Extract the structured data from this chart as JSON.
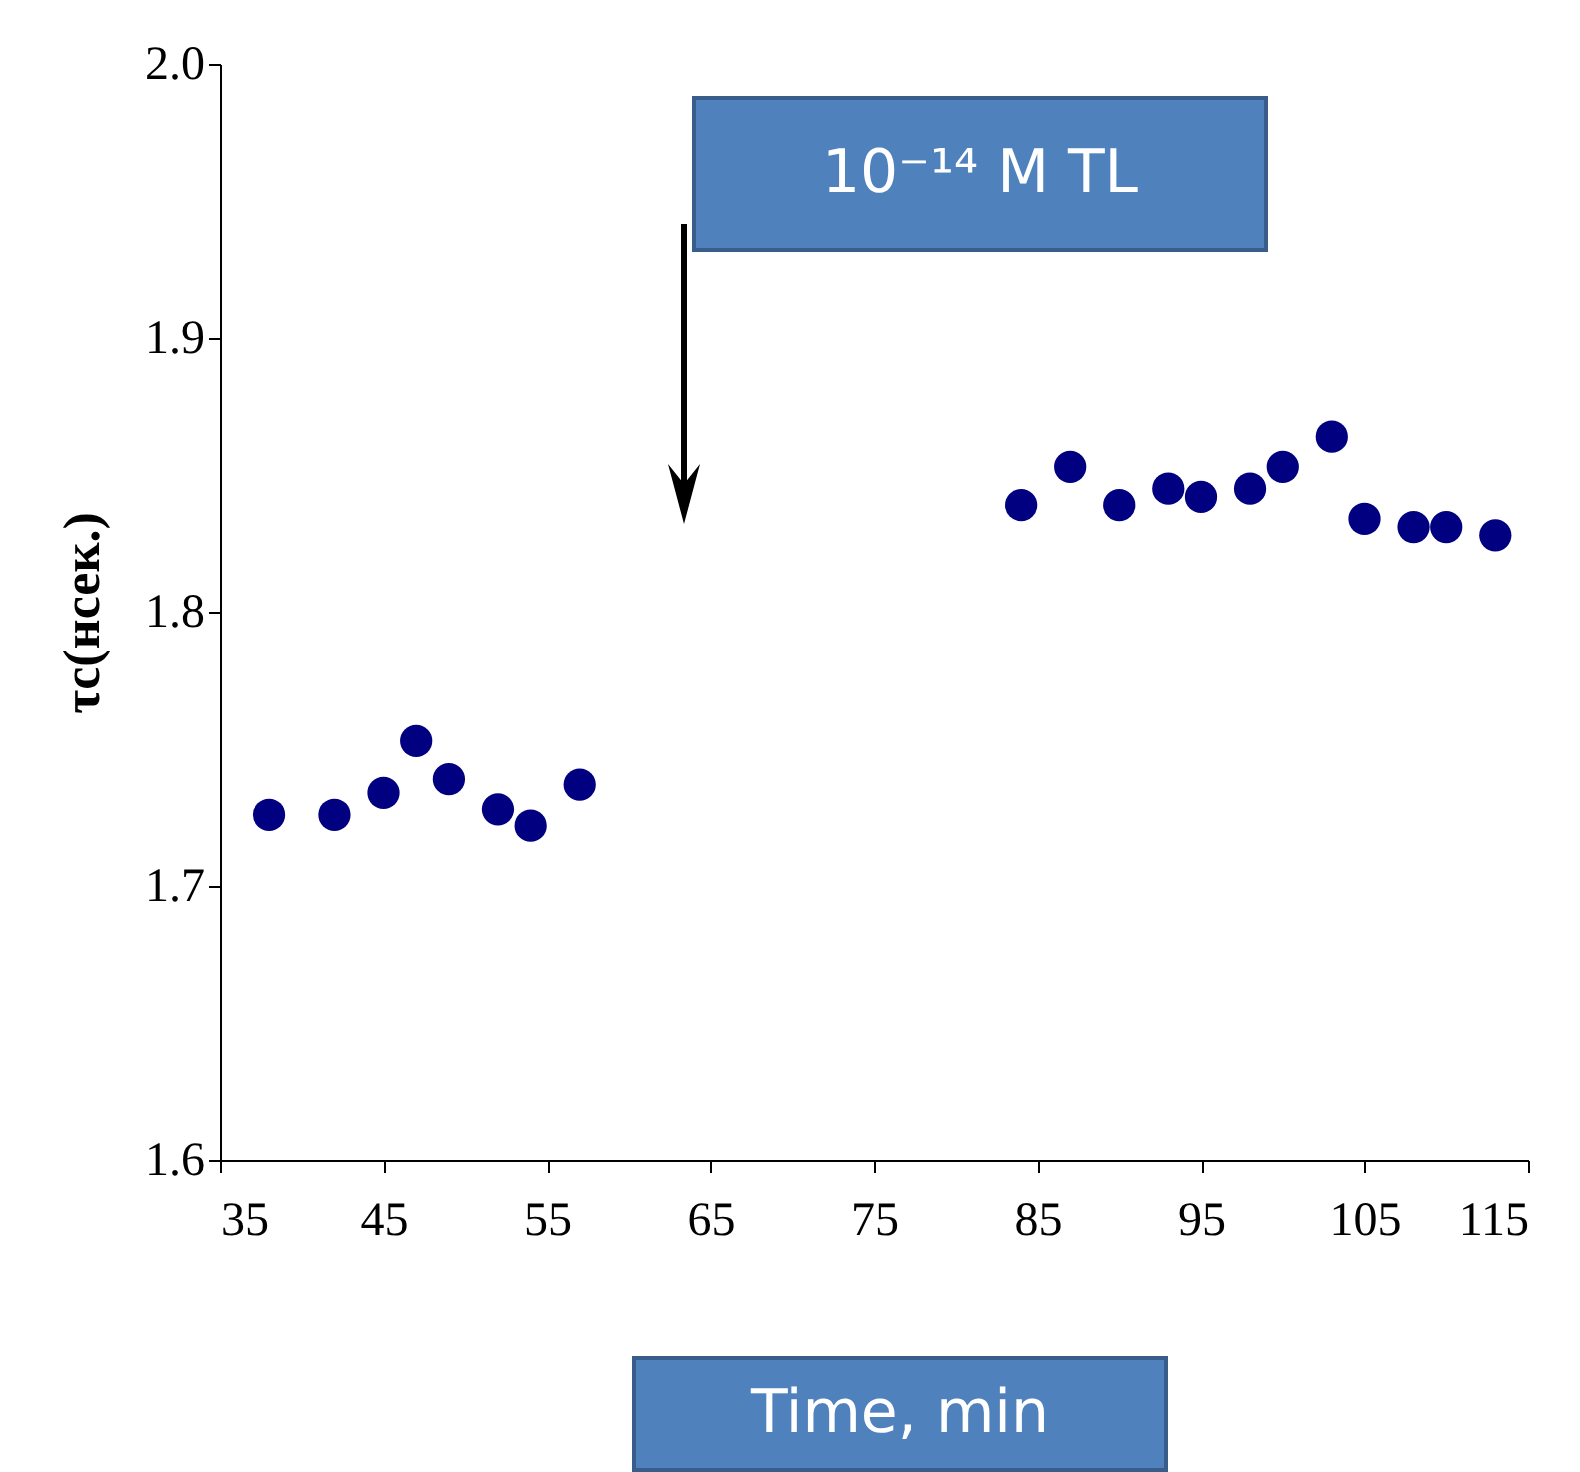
{
  "chart_data": {
    "type": "scatter",
    "xlabel": "Time, min",
    "ylabel": "τc(нсек.)",
    "x": [
      38,
      42,
      45,
      47,
      49,
      52,
      54,
      57,
      84,
      87,
      90,
      93,
      95,
      98,
      100,
      103,
      105,
      108,
      110,
      113
    ],
    "series": [
      {
        "color": "#000080",
        "values": [
          1.726,
          1.726,
          1.734,
          1.753,
          1.739,
          1.728,
          1.722,
          1.737,
          1.839,
          1.853,
          1.839,
          1.845,
          1.842,
          1.845,
          1.853,
          1.864,
          1.834,
          1.831,
          1.831,
          1.828
        ]
      }
    ],
    "xlim": [
      35,
      115
    ],
    "xticks": [
      35,
      45,
      55,
      65,
      75,
      85,
      95,
      105,
      115
    ],
    "ylim": [
      1.6,
      2.0
    ],
    "yticks": [
      1.6,
      1.7,
      1.8,
      1.9,
      {
        "value": 2,
        "label": "2.0"
      }
    ],
    "marker": "circle",
    "grid": false,
    "legend": false,
    "annotations": [
      "10⁻¹⁴ M  TL"
    ]
  }
}
